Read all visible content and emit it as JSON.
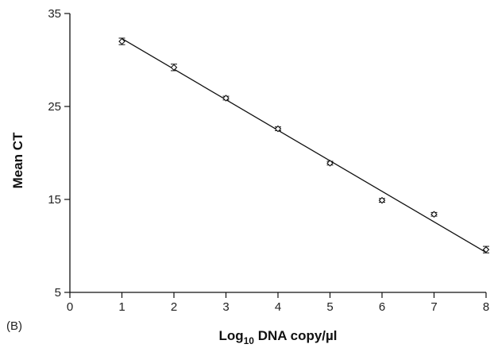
{
  "chart_data": {
    "type": "scatter",
    "panel_label": "(B)",
    "xlabel_main": "Log",
    "xlabel_sub": "10",
    "xlabel_rest": " DNA copy/µl",
    "ylabel": "Mean CT",
    "xlim": [
      0,
      8
    ],
    "ylim": [
      5,
      35
    ],
    "xticks": [
      0,
      1,
      2,
      3,
      4,
      5,
      6,
      7,
      8
    ],
    "yticks": [
      5,
      15,
      25,
      35
    ],
    "grid": false,
    "series": [
      {
        "marker": "diamond-open",
        "x": [
          1,
          2,
          3,
          4,
          5,
          6,
          7,
          8
        ],
        "y": [
          32.0,
          29.2,
          25.9,
          22.6,
          18.9,
          14.9,
          13.4,
          9.6
        ],
        "error": [
          0.35,
          0.35,
          0.2,
          0.2,
          0.2,
          0.2,
          0.2,
          0.35
        ]
      }
    ],
    "fit_line": {
      "x": [
        1,
        8
      ],
      "y": [
        32.3,
        9.3
      ]
    },
    "colors": {
      "line": "#111111",
      "marker": "#111111"
    }
  }
}
